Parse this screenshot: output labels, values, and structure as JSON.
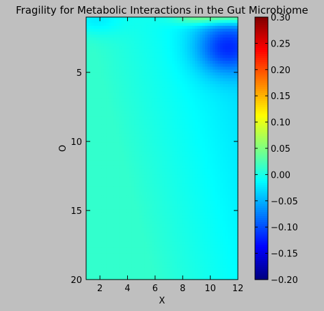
{
  "chart_data": {
    "type": "heatmap",
    "title": "Fragility for Metabolic Interactions in the Gut Microbiome",
    "xlabel": "X",
    "ylabel": "O",
    "xlim": [
      1,
      12
    ],
    "ylim": [
      20,
      1
    ],
    "y_axis_inverted": true,
    "x_ticks": [
      2,
      4,
      6,
      8,
      10,
      12
    ],
    "y_ticks": [
      5,
      10,
      15,
      20
    ],
    "colorbar": {
      "colormap": "jet",
      "range": [
        -0.2,
        0.3
      ],
      "ticks": [
        -0.2,
        -0.15,
        -0.1,
        -0.05,
        0.0,
        0.05,
        0.1,
        0.15,
        0.2,
        0.25,
        0.3
      ],
      "tick_labels": [
        "−0.20",
        "−0.15",
        "−0.10",
        "−0.05",
        "0.00",
        "0.05",
        "0.10",
        "0.15",
        "0.20",
        "0.25",
        "0.30"
      ]
    },
    "field_description": "Values near 0 across most of the field (slightly positive at low X / high O, slightly negative toward high X); a band of ~0.05 appears in the top-right corner near O=1, X>8, and a dip to about -0.10 occurs near X=10-12, O=2-5.",
    "samples": [
      {
        "x": 1,
        "o": 1,
        "value": -0.03
      },
      {
        "x": 10,
        "o": 1,
        "value": 0.06
      },
      {
        "x": 11,
        "o": 4,
        "value": -0.11
      },
      {
        "x": 2,
        "o": 15,
        "value": 0.01
      },
      {
        "x": 11,
        "o": 18,
        "value": -0.03
      }
    ],
    "grid": false,
    "legend": "none"
  }
}
